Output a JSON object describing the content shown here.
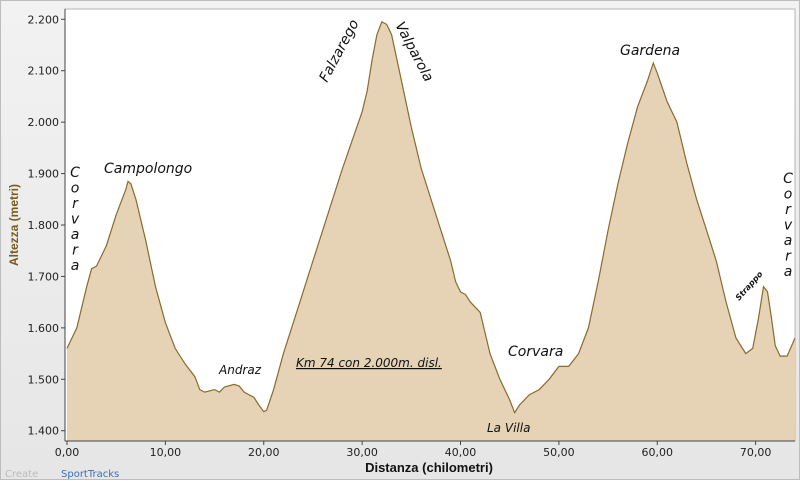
{
  "chart_data": {
    "type": "area",
    "xlabel": "Distanza (chilometri)",
    "ylabel": "Altezza (metri)",
    "xlim": [
      0,
      74
    ],
    "ylim": [
      1380,
      2220
    ],
    "xticks": [
      "0,00",
      "10,00",
      "20,00",
      "30,00",
      "40,00",
      "50,00",
      "60,00",
      "70,00"
    ],
    "yticks": [
      "1.400",
      "1.500",
      "1.600",
      "1.700",
      "1.800",
      "1.900",
      "2.000",
      "2.100",
      "2.200"
    ],
    "grid": false,
    "colors": {
      "fill": "#e6d3b6",
      "line": "#8a6a2e"
    },
    "profile": [
      [
        0,
        1560
      ],
      [
        1,
        1600
      ],
      [
        2,
        1680
      ],
      [
        2.5,
        1715
      ],
      [
        3,
        1720
      ],
      [
        4,
        1760
      ],
      [
        5,
        1820
      ],
      [
        6,
        1870
      ],
      [
        6.2,
        1885
      ],
      [
        6.5,
        1880
      ],
      [
        7,
        1850
      ],
      [
        8,
        1770
      ],
      [
        9,
        1680
      ],
      [
        10,
        1610
      ],
      [
        11,
        1560
      ],
      [
        12,
        1530
      ],
      [
        13,
        1505
      ],
      [
        13.5,
        1480
      ],
      [
        14,
        1475
      ],
      [
        15,
        1480
      ],
      [
        15.5,
        1475
      ],
      [
        16,
        1485
      ],
      [
        17,
        1490
      ],
      [
        17.5,
        1487
      ],
      [
        18,
        1475
      ],
      [
        19,
        1465
      ],
      [
        19.5,
        1450
      ],
      [
        20,
        1437
      ],
      [
        20.3,
        1440
      ],
      [
        21,
        1480
      ],
      [
        22,
        1550
      ],
      [
        23,
        1610
      ],
      [
        24,
        1670
      ],
      [
        25,
        1730
      ],
      [
        26,
        1790
      ],
      [
        27,
        1850
      ],
      [
        28,
        1910
      ],
      [
        29,
        1965
      ],
      [
        30,
        2020
      ],
      [
        30.5,
        2060
      ],
      [
        31,
        2120
      ],
      [
        31.5,
        2170
      ],
      [
        32,
        2195
      ],
      [
        32.5,
        2190
      ],
      [
        33,
        2170
      ],
      [
        34,
        2080
      ],
      [
        35,
        1990
      ],
      [
        36,
        1910
      ],
      [
        37,
        1850
      ],
      [
        38,
        1790
      ],
      [
        39,
        1730
      ],
      [
        39.5,
        1690
      ],
      [
        40,
        1670
      ],
      [
        40.5,
        1665
      ],
      [
        41,
        1650
      ],
      [
        42,
        1630
      ],
      [
        42.5,
        1590
      ],
      [
        43,
        1550
      ],
      [
        44,
        1500
      ],
      [
        45,
        1460
      ],
      [
        45.5,
        1435
      ],
      [
        46,
        1450
      ],
      [
        47,
        1470
      ],
      [
        48,
        1480
      ],
      [
        49,
        1500
      ],
      [
        50,
        1525
      ],
      [
        51,
        1525
      ],
      [
        52,
        1550
      ],
      [
        53,
        1600
      ],
      [
        54,
        1690
      ],
      [
        55,
        1790
      ],
      [
        56,
        1880
      ],
      [
        57,
        1960
      ],
      [
        58,
        2030
      ],
      [
        59,
        2080
      ],
      [
        59.6,
        2115
      ],
      [
        60,
        2095
      ],
      [
        61,
        2040
      ],
      [
        62,
        2000
      ],
      [
        63,
        1920
      ],
      [
        64,
        1850
      ],
      [
        65,
        1790
      ],
      [
        66,
        1730
      ],
      [
        67,
        1650
      ],
      [
        68,
        1580
      ],
      [
        69,
        1550
      ],
      [
        69.7,
        1560
      ],
      [
        70.3,
        1620
      ],
      [
        70.8,
        1680
      ],
      [
        71.2,
        1670
      ],
      [
        71.6,
        1620
      ],
      [
        72,
        1565
      ],
      [
        72.5,
        1545
      ],
      [
        73.2,
        1545
      ],
      [
        74,
        1580
      ]
    ],
    "annotations": {
      "campolongo": "Campolongo",
      "andraz": "Andraz",
      "falzarego": "Falzarego",
      "valparola": "Valparola",
      "gardena": "Gardena",
      "corvara_mid": "Corvara",
      "la_villa": "La Villa",
      "strappo": "Strappo",
      "corvara_left": "Corvara",
      "corvara_right": "Corvara",
      "summary": "Km 74 con 2.000m. disl."
    }
  },
  "credit": {
    "prefix": "Create",
    "brand": "SportTracks"
  }
}
